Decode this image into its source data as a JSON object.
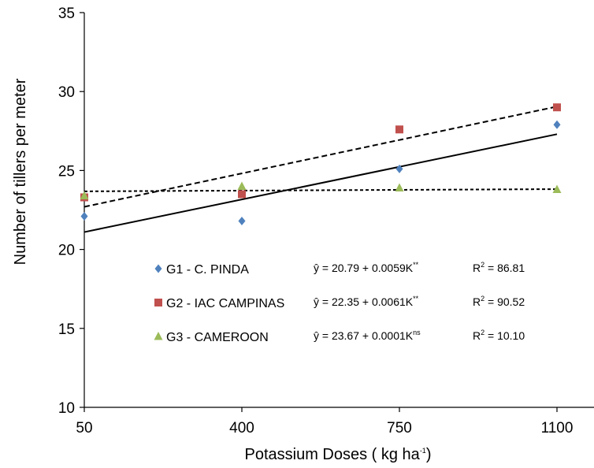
{
  "chart_data": {
    "type": "scatter",
    "xlabel": "Potassium Doses ( kg ha",
    "xlabel_sup": "-1",
    "xlabel_end": ")",
    "ylabel": "Number of tillers per meter",
    "x_ticks": [
      "50",
      "400",
      "750",
      "1100"
    ],
    "y_ticks": [
      "10",
      "15",
      "20",
      "25",
      "30",
      "35"
    ],
    "x_values": [
      50,
      400,
      750,
      1100
    ],
    "ylim": [
      10,
      35
    ],
    "grid": false,
    "legend_position": "bottom-left inside plot",
    "series": [
      {
        "name": "G1 - C. PINDA",
        "marker": "diamond",
        "color": "#4f81bd",
        "values": [
          22.1,
          21.8,
          25.1,
          27.9
        ],
        "trendline": {
          "y_start": 21.1,
          "y_end": 27.3,
          "style": "solid"
        },
        "equation": "ŷ = 20.79 + 0.0059K",
        "significance": "**",
        "r2_label": "R",
        "r2_value": " = 86.81"
      },
      {
        "name": "G2 - IAC CAMPINAS",
        "marker": "square",
        "color": "#c0504d",
        "values": [
          23.3,
          23.5,
          27.6,
          29.0
        ],
        "trendline": {
          "y_start": 22.7,
          "y_end": 29.05,
          "style": "dashed"
        },
        "equation": "ŷ = 22.35 + 0.0061K",
        "significance": "**",
        "r2_label": "R",
        "r2_value": " = 90.52"
      },
      {
        "name": "G3 - CAMEROON",
        "marker": "triangle",
        "color": "#9bbb59",
        "values": [
          23.4,
          24.0,
          23.9,
          23.8
        ],
        "trendline": {
          "y_start": 23.68,
          "y_end": 23.82,
          "style": "dotted"
        },
        "equation": "ŷ = 23.67 + 0.0001K",
        "significance": "ns",
        "r2_label": "R",
        "r2_value": " = 10.10"
      }
    ]
  }
}
